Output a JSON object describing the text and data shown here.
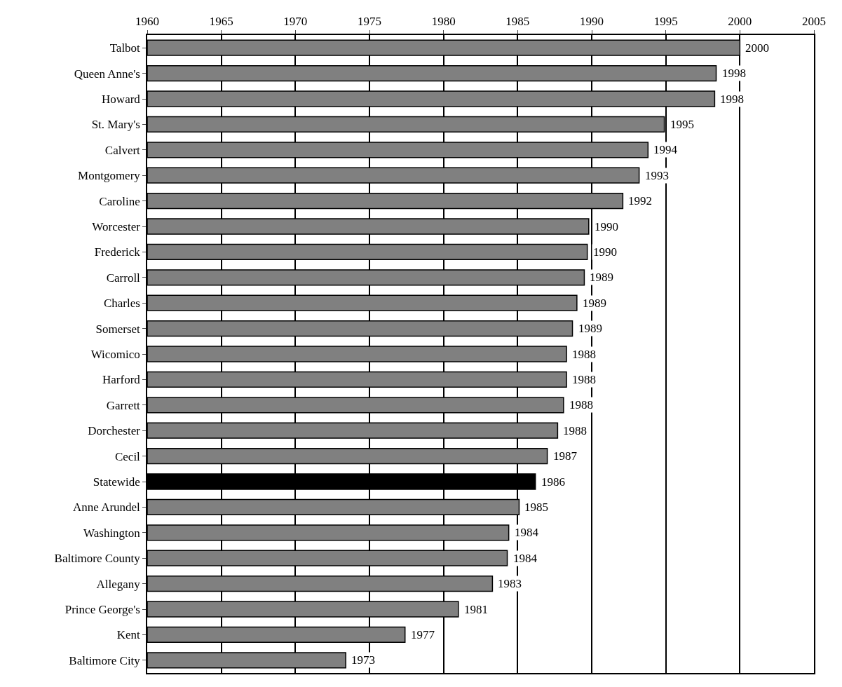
{
  "chart_data": {
    "type": "bar",
    "orientation": "horizontal",
    "categories": [
      "Talbot",
      "Queen Anne's",
      "Howard",
      "St. Mary's",
      "Calvert",
      "Montgomery",
      "Caroline",
      "Worcester",
      "Frederick",
      "Carroll",
      "Charles",
      "Somerset",
      "Wicomico",
      "Harford",
      "Garrett",
      "Dorchester",
      "Cecil",
      "Statewide",
      "Anne Arundel",
      "Washington",
      "Baltimore County",
      "Allegany",
      "Prince George's",
      "Kent",
      "Baltimore City"
    ],
    "values": [
      2000,
      1998.4,
      1998.3,
      1994.9,
      1993.8,
      1993.2,
      1992.1,
      1989.8,
      1989.7,
      1989.5,
      1989.0,
      1988.7,
      1988.3,
      1988.3,
      1988.1,
      1987.7,
      1987.0,
      1986.2,
      1985.1,
      1984.4,
      1984.3,
      1983.3,
      1981.0,
      1977.4,
      1973.4
    ],
    "value_labels": [
      "2000",
      "1998",
      "1998",
      "1995",
      "1994",
      "1993",
      "1992",
      "1990",
      "1990",
      "1989",
      "1989",
      "1989",
      "1988",
      "1988",
      "1988",
      "1988",
      "1987",
      "1986",
      "1985",
      "1984",
      "1984",
      "1983",
      "1981",
      "1977",
      "1973"
    ],
    "colors": [
      "#808080",
      "#808080",
      "#808080",
      "#808080",
      "#808080",
      "#808080",
      "#808080",
      "#808080",
      "#808080",
      "#808080",
      "#808080",
      "#808080",
      "#808080",
      "#808080",
      "#808080",
      "#808080",
      "#808080",
      "#000000",
      "#808080",
      "#808080",
      "#808080",
      "#808080",
      "#808080",
      "#808080",
      "#808080"
    ],
    "xlim": [
      1960,
      2005
    ],
    "xticks": [
      1960,
      1965,
      1970,
      1975,
      1980,
      1985,
      1990,
      1995,
      2000,
      2005
    ],
    "grid": "x"
  }
}
